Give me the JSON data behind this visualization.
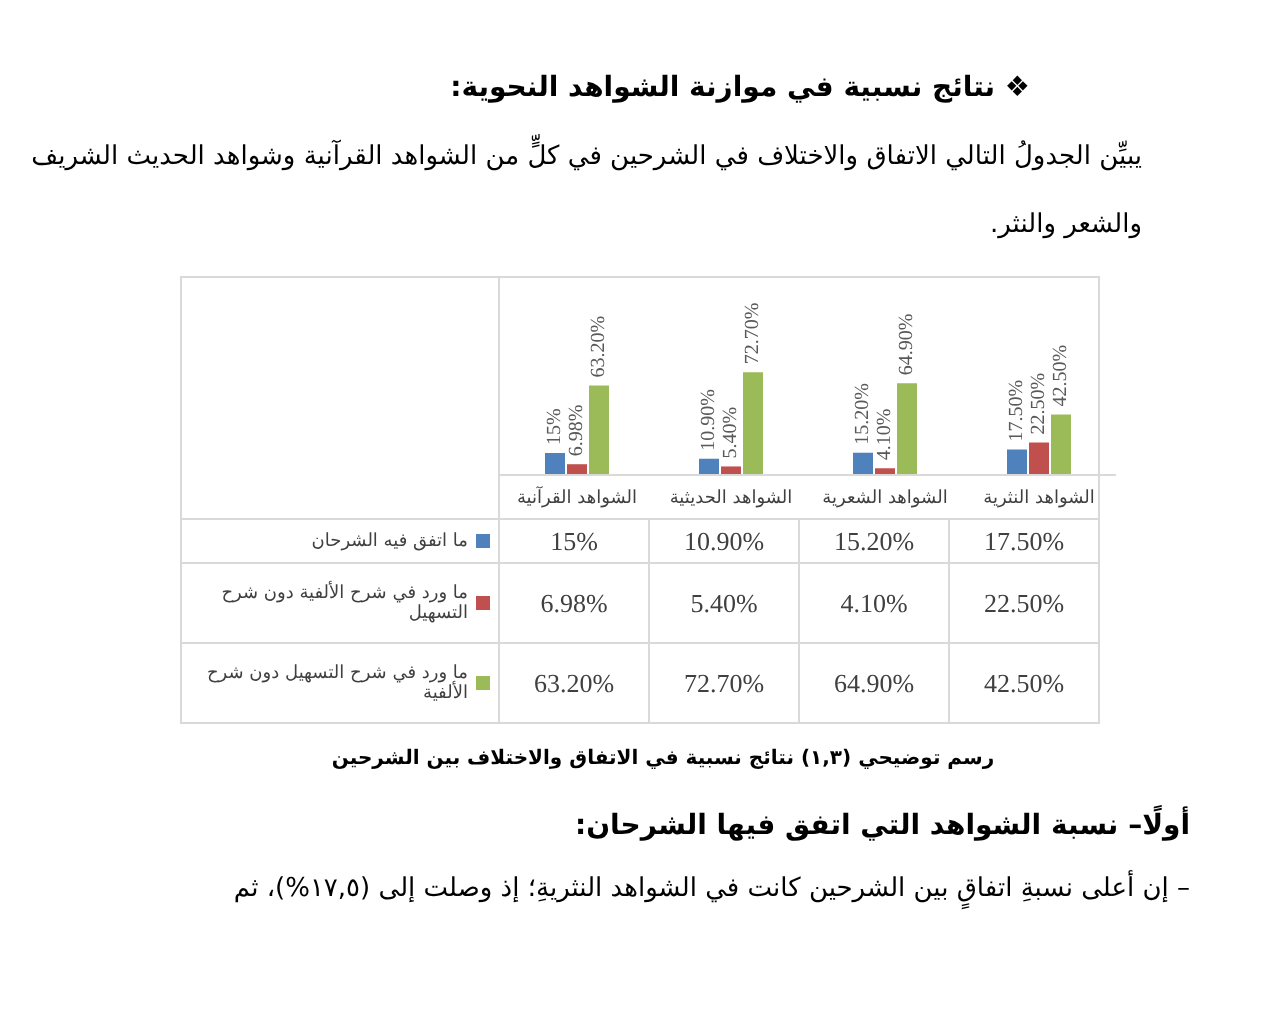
{
  "chart_data": {
    "type": "bar",
    "title": "❖ نتائج نسبية في موازنة الشواهد النحوية:",
    "subtitle": "يبيِّن الجدولُ التالي الاتفاق والاختلاف في الشرحين في كلٍّ من الشواهد القرآنية وشواهد الحديث الشريف والشعر والنثر.",
    "categories": [
      "الشواهد القرآنية",
      "الشواهد الحديثية",
      "الشواهد الشعرية",
      "الشواهد النثرية"
    ],
    "series": [
      {
        "name": "ما اتفق فيه الشرحان",
        "color": "#4f81bd",
        "values": [
          15,
          10.9,
          15.2,
          17.5
        ],
        "value_labels": [
          "15%",
          "10.90%",
          "15.20%",
          "17.50%"
        ]
      },
      {
        "name": "ما ورد في شرح الألفية دون شرح التسهيل",
        "color": "#c0504d",
        "values": [
          6.98,
          5.4,
          4.1,
          22.5
        ],
        "value_labels": [
          "6.98%",
          "5.40%",
          "4.10%",
          "22.50%"
        ]
      },
      {
        "name": "ما ورد في شرح التسهيل دون شرح الألفية",
        "color": "#9bbb59",
        "values": [
          63.2,
          72.7,
          64.9,
          42.5
        ],
        "value_labels": [
          "63.20%",
          "72.70%",
          "64.90%",
          "42.50%"
        ]
      }
    ],
    "legend": "bottom left",
    "annotations": [
      "رسم توضيحي (١,٣) نتائج نسبية في الاتفاق والاختلاف بين الشرحين",
      "أولًا– نسبة الشواهد التي اتفق فيها الشرحان:",
      "–  إن أعلى نسبةِ اتفاقٍ بين الشرحين كانت في الشواهد النثريةِ؛ إذ وصلت إلى (١٧,٥%)، ثم"
    ]
  }
}
